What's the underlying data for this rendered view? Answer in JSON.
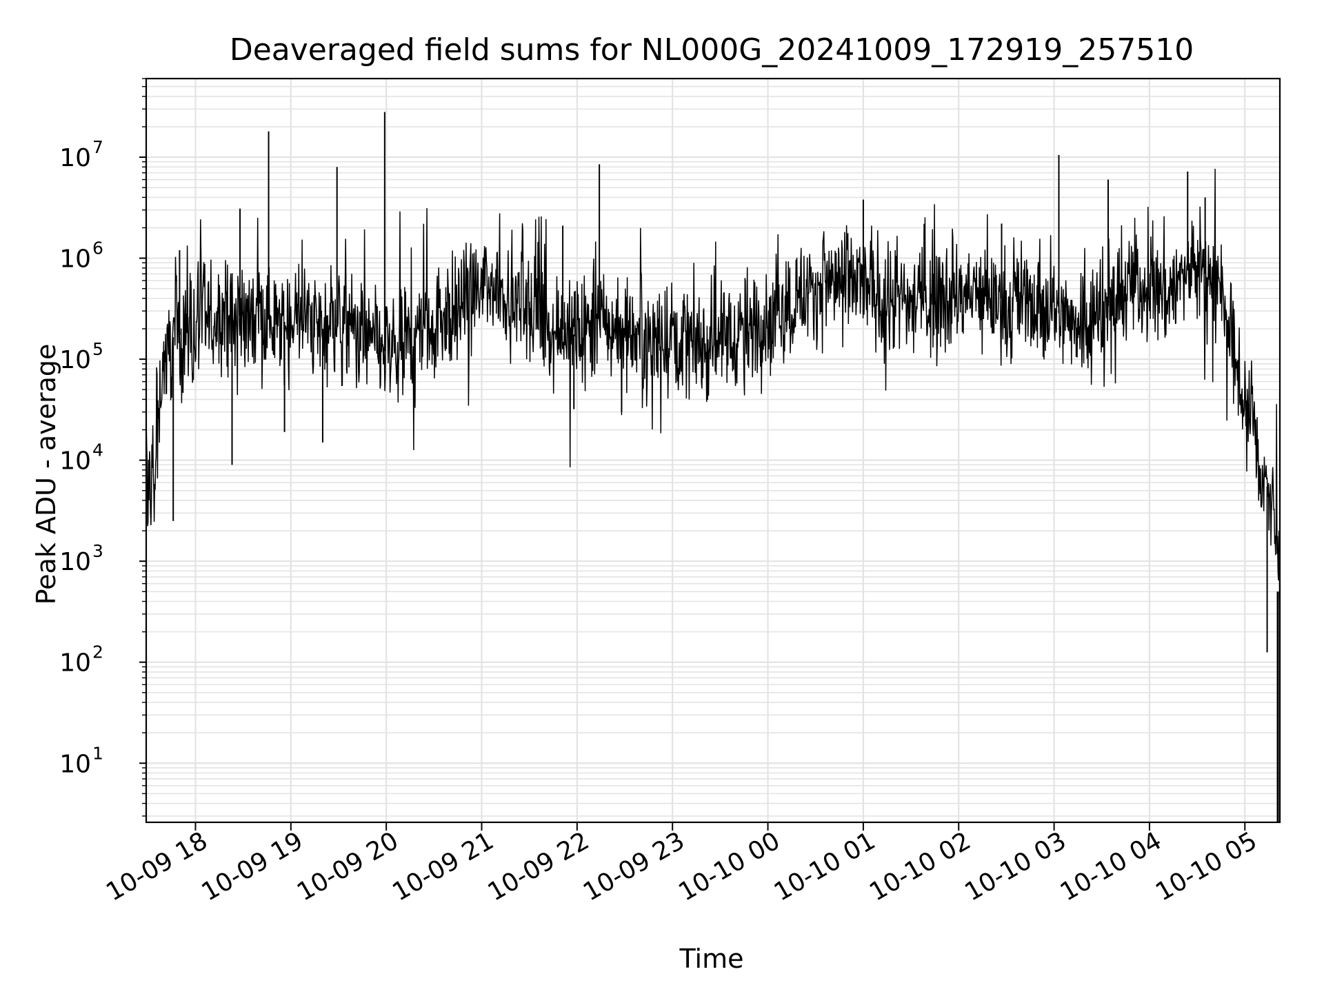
{
  "chart_data": {
    "type": "line",
    "title": "Deaveraged field sums for NL000G_20241009_172919_257510",
    "xlabel": "Time",
    "ylabel": "Peak ADU - average",
    "yscale": "log",
    "ylim": [
      2.6,
      60000000
    ],
    "xlim": [
      "2024-10-09 17:29",
      "2024-10-10 05:22"
    ],
    "grid": true,
    "line_color": "#000000",
    "grid_color": "#e3e3e3",
    "x_ticks": [
      {
        "t": "2024-10-09 18:00",
        "label": "10-09 18"
      },
      {
        "t": "2024-10-09 19:00",
        "label": "10-09 19"
      },
      {
        "t": "2024-10-09 20:00",
        "label": "10-09 20"
      },
      {
        "t": "2024-10-09 21:00",
        "label": "10-09 21"
      },
      {
        "t": "2024-10-09 22:00",
        "label": "10-09 22"
      },
      {
        "t": "2024-10-09 23:00",
        "label": "10-09 23"
      },
      {
        "t": "2024-10-10 00:00",
        "label": "10-10 00"
      },
      {
        "t": "2024-10-10 01:00",
        "label": "10-10 01"
      },
      {
        "t": "2024-10-10 02:00",
        "label": "10-10 02"
      },
      {
        "t": "2024-10-10 03:00",
        "label": "10-10 03"
      },
      {
        "t": "2024-10-10 04:00",
        "label": "10-10 04"
      },
      {
        "t": "2024-10-10 05:00",
        "label": "10-10 05"
      }
    ],
    "y_ticks": [
      {
        "value": 10,
        "base": "10",
        "exp": "1"
      },
      {
        "value": 100,
        "base": "10",
        "exp": "2"
      },
      {
        "value": 1000,
        "base": "10",
        "exp": "3"
      },
      {
        "value": 10000,
        "base": "10",
        "exp": "4"
      },
      {
        "value": 100000,
        "base": "10",
        "exp": "5"
      },
      {
        "value": 1000000,
        "base": "10",
        "exp": "6"
      },
      {
        "value": 10000000,
        "base": "10",
        "exp": "7"
      }
    ],
    "series": [
      {
        "x": [
          "2024-10-09 17:29",
          "2024-10-09 17:30",
          "2024-10-09 17:31",
          "2024-10-09 17:32",
          "2024-10-09 17:33",
          "2024-10-09 17:34",
          "2024-10-09 17:36",
          "2024-10-09 17:38",
          "2024-10-09 17:40",
          "2024-10-09 17:42",
          "2024-10-09 17:45",
          "2024-10-09 17:48",
          "2024-10-09 17:52",
          "2024-10-09 17:55",
          "2024-10-09 18:00",
          "2024-10-09 18:05",
          "2024-10-09 18:10",
          "2024-10-09 18:15",
          "2024-10-09 18:20",
          "2024-10-09 18:25",
          "2024-10-09 18:30",
          "2024-10-09 18:35",
          "2024-10-09 18:40",
          "2024-10-09 18:45",
          "2024-10-09 18:50",
          "2024-10-09 18:55",
          "2024-10-09 19:00",
          "2024-10-09 19:10",
          "2024-10-09 19:20",
          "2024-10-09 19:25",
          "2024-10-09 19:30",
          "2024-10-09 19:40",
          "2024-10-09 19:50",
          "2024-10-09 19:59",
          "2024-10-09 20:10",
          "2024-10-09 20:20",
          "2024-10-09 20:30",
          "2024-10-09 20:40",
          "2024-10-09 20:50",
          "2024-10-09 21:00",
          "2024-10-09 21:10",
          "2024-10-09 21:20",
          "2024-10-09 21:30",
          "2024-10-09 21:40",
          "2024-10-09 21:50",
          "2024-10-09 22:00",
          "2024-10-09 22:10",
          "2024-10-09 22:15",
          "2024-10-09 22:20",
          "2024-10-09 22:30",
          "2024-10-09 22:40",
          "2024-10-09 22:50",
          "2024-10-09 23:00",
          "2024-10-09 23:10",
          "2024-10-09 23:20",
          "2024-10-09 23:30",
          "2024-10-09 23:40",
          "2024-10-09 23:50",
          "2024-10-10 00:00",
          "2024-10-10 00:10",
          "2024-10-10 00:20",
          "2024-10-10 00:30",
          "2024-10-10 00:40",
          "2024-10-10 00:50",
          "2024-10-10 01:00",
          "2024-10-10 01:10",
          "2024-10-10 01:20",
          "2024-10-10 01:30",
          "2024-10-10 01:40",
          "2024-10-10 01:50",
          "2024-10-10 02:00",
          "2024-10-10 02:10",
          "2024-10-10 02:20",
          "2024-10-10 02:30",
          "2024-10-10 02:40",
          "2024-10-10 02:50",
          "2024-10-10 03:00",
          "2024-10-10 03:10",
          "2024-10-10 03:20",
          "2024-10-10 03:30",
          "2024-10-10 03:40",
          "2024-10-10 03:50",
          "2024-10-10 04:00",
          "2024-10-10 04:10",
          "2024-10-10 04:20",
          "2024-10-10 04:25",
          "2024-10-10 04:30",
          "2024-10-10 04:35",
          "2024-10-10 04:40",
          "2024-10-10 04:45",
          "2024-10-10 04:50",
          "2024-10-10 04:55",
          "2024-10-10 05:00",
          "2024-10-10 05:05",
          "2024-10-10 05:10",
          "2024-10-10 05:15",
          "2024-10-10 05:20",
          "2024-10-10 05:22"
        ],
        "y": [
          20000,
          2500,
          8000,
          1500,
          12000,
          3000,
          20000,
          60000,
          90000,
          110000,
          150000,
          200000,
          150000,
          250000,
          200000,
          250000,
          230000,
          260000,
          300000,
          250000,
          280000,
          230000,
          300000,
          260000,
          200000,
          230000,
          250000,
          250000,
          200000,
          280000,
          220000,
          200000,
          150000,
          120000,
          120000,
          180000,
          250000,
          300000,
          350000,
          500000,
          550000,
          400000,
          300000,
          250000,
          200000,
          170000,
          200000,
          250000,
          210000,
          200000,
          180000,
          170000,
          180000,
          160000,
          150000,
          170000,
          180000,
          200000,
          250000,
          320000,
          420000,
          500000,
          600000,
          550000,
          550000,
          450000,
          400000,
          350000,
          400000,
          420000,
          400000,
          450000,
          400000,
          400000,
          380000,
          350000,
          300000,
          250000,
          250000,
          300000,
          400000,
          600000,
          500000,
          450000,
          600000,
          800000,
          900000,
          700000,
          600000,
          400000,
          200000,
          80000,
          40000,
          20000,
          8000,
          5000,
          1500,
          500
        ]
      }
    ],
    "spikes": [
      {
        "x": "2024-10-09 17:50",
        "y": 1200000
      },
      {
        "x": "2024-10-09 18:28",
        "y": 3100000
      },
      {
        "x": "2024-10-09 18:46",
        "y": 18000000
      },
      {
        "x": "2024-10-09 19:29",
        "y": 8000000
      },
      {
        "x": "2024-10-09 19:59",
        "y": 28000000
      },
      {
        "x": "2024-10-09 21:51",
        "y": 2100000
      },
      {
        "x": "2024-10-09 22:14",
        "y": 8500000
      },
      {
        "x": "2024-10-10 01:00",
        "y": 3800000
      },
      {
        "x": "2024-10-10 02:27",
        "y": 2200000
      },
      {
        "x": "2024-10-10 03:03",
        "y": 10500000
      },
      {
        "x": "2024-10-10 03:34",
        "y": 6000000
      },
      {
        "x": "2024-10-10 04:24",
        "y": 7200000
      },
      {
        "x": "2024-10-10 04:35",
        "y": 4000000
      }
    ],
    "dips": [
      {
        "x": "2024-10-09 17:46",
        "y": 2500
      },
      {
        "x": "2024-10-09 18:23",
        "y": 9000
      },
      {
        "x": "2024-10-09 18:56",
        "y": 19000
      },
      {
        "x": "2024-10-09 19:20",
        "y": 15000
      },
      {
        "x": "2024-10-09 21:58",
        "y": 32000
      },
      {
        "x": "2024-10-09 22:28",
        "y": 30000
      },
      {
        "x": "2024-10-10 05:14",
        "y": 125
      }
    ]
  }
}
